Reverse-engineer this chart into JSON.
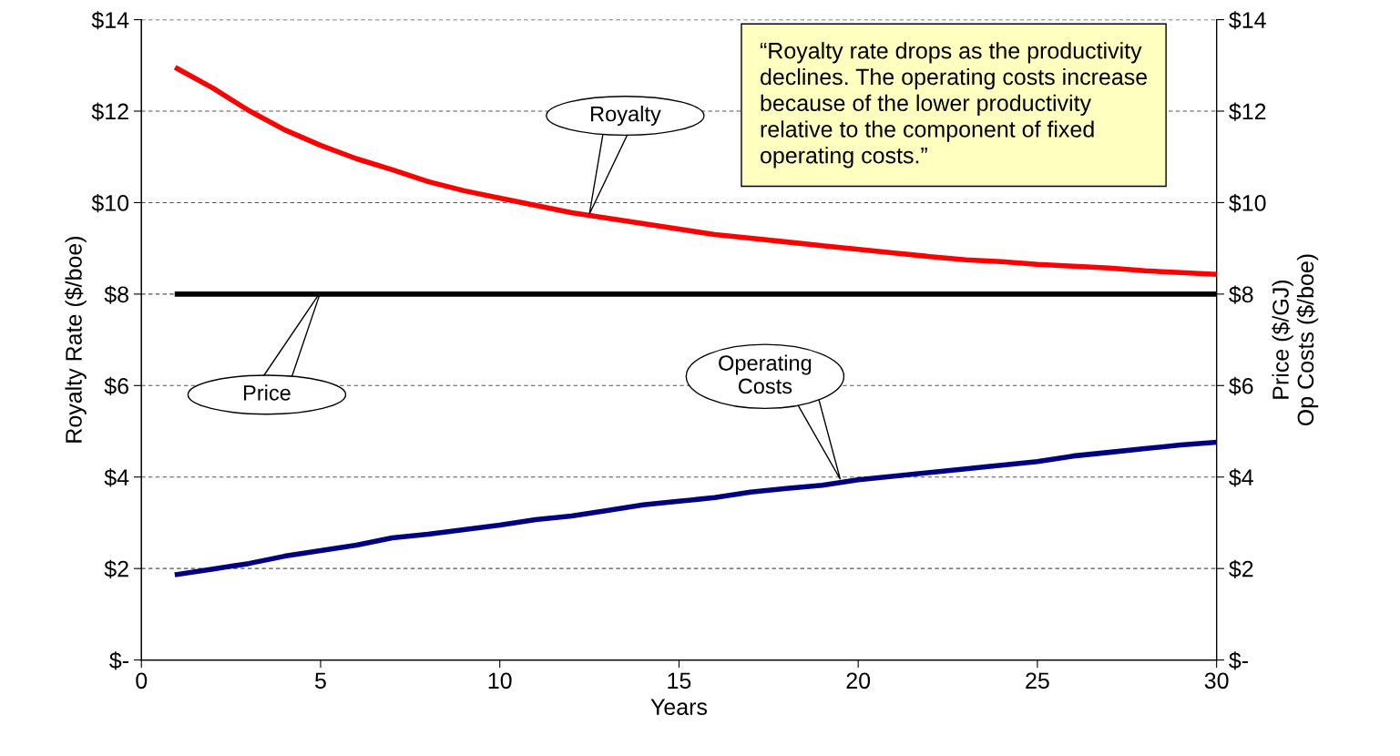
{
  "chart_data": {
    "type": "line",
    "xlabel": "Years",
    "ylabel": "Royalty Rate ($/boe)",
    "y2label": "Price ($/GJ)\nOp Costs ($/boe)",
    "x": [
      1,
      2,
      3,
      4,
      5,
      6,
      7,
      8,
      9,
      10,
      11,
      12,
      13,
      14,
      15,
      16,
      17,
      18,
      19,
      20,
      21,
      22,
      23,
      24,
      25,
      26,
      27,
      28,
      29,
      30
    ],
    "series": [
      {
        "color": "#ff0000",
        "values": [
          12.93,
          12.5,
          12.01,
          11.59,
          11.25,
          10.96,
          10.72,
          10.46,
          10.26,
          10.1,
          9.94,
          9.78,
          9.66,
          9.54,
          9.42,
          9.3,
          9.22,
          9.14,
          9.06,
          8.98,
          8.9,
          8.82,
          8.75,
          8.71,
          8.65,
          8.61,
          8.57,
          8.51,
          8.47,
          8.43
        ]
      },
      {
        "color": "#000000",
        "axis": "y2",
        "values": [
          8,
          8,
          8,
          8,
          8,
          8,
          8,
          8,
          8,
          8,
          8,
          8,
          8,
          8,
          8,
          8,
          8,
          8,
          8,
          8,
          8,
          8,
          8,
          8,
          8,
          8,
          8,
          8,
          8,
          8
        ]
      },
      {
        "color": "#000080",
        "axis": "y2",
        "values": [
          1.87,
          1.99,
          2.11,
          2.27,
          2.39,
          2.51,
          2.67,
          2.75,
          2.85,
          2.95,
          3.07,
          3.15,
          3.27,
          3.39,
          3.47,
          3.55,
          3.67,
          3.75,
          3.82,
          3.94,
          4.02,
          4.1,
          4.18,
          4.26,
          4.34,
          4.46,
          4.54,
          4.62,
          4.7,
          4.76
        ]
      }
    ],
    "xlim": [
      0,
      30
    ],
    "xticks": [
      0,
      5,
      10,
      15,
      20,
      25,
      30
    ],
    "ylim": [
      0,
      14
    ],
    "yticks": [
      {
        "value": 0,
        "label": "$-"
      },
      {
        "value": 2,
        "label": "$2"
      },
      {
        "value": 4,
        "label": "$4"
      },
      {
        "value": 6,
        "label": "$6"
      },
      {
        "value": 8,
        "label": "$8"
      },
      {
        "value": 10,
        "label": "$10"
      },
      {
        "value": 12,
        "label": "$12"
      },
      {
        "value": 14,
        "label": "$14"
      }
    ],
    "y2lim": [
      0,
      14
    ],
    "y2ticks": [
      {
        "value": 0,
        "label": "$-"
      },
      {
        "value": 2,
        "label": "$2"
      },
      {
        "value": 4,
        "label": "$4"
      },
      {
        "value": 6,
        "label": "$6"
      },
      {
        "value": 8,
        "label": "$8"
      },
      {
        "value": 10,
        "label": "$10"
      },
      {
        "value": 12,
        "label": "$12"
      },
      {
        "value": 14,
        "label": "$14"
      }
    ],
    "grid": "y",
    "legend": false,
    "marker": "none",
    "line_style": "solid",
    "annotations": [
      "Royalty",
      "Price",
      "Operating\nCosts",
      "“Royalty rate drops as the productivity\ndeclines. The operating costs increase\nbecause of the lower productivity\nrelative to the component of fixed\noperating costs.”"
    ]
  }
}
